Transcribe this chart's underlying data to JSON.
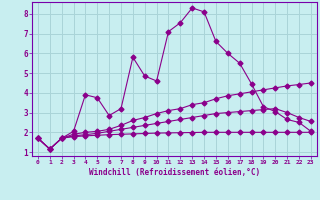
{
  "xlabel": "Windchill (Refroidissement éolien,°C)",
  "bg_color": "#c8eef0",
  "grid_color": "#aad4d8",
  "line_color": "#8b008b",
  "border_color": "#7700aa",
  "marker": "D",
  "xlim": [
    -0.5,
    23.5
  ],
  "ylim": [
    0.8,
    8.6
  ],
  "xticks": [
    0,
    1,
    2,
    3,
    4,
    5,
    6,
    7,
    8,
    9,
    10,
    11,
    12,
    13,
    14,
    15,
    16,
    17,
    18,
    19,
    20,
    21,
    22,
    23
  ],
  "yticks": [
    1,
    2,
    3,
    4,
    5,
    6,
    7,
    8
  ],
  "curve1_x": [
    0,
    1,
    2,
    3,
    4,
    5,
    6,
    7,
    8,
    9,
    10,
    11,
    12,
    13,
    14,
    15,
    16,
    17,
    18,
    19,
    20,
    21,
    22,
    23
  ],
  "curve1_y": [
    1.7,
    1.15,
    1.7,
    2.05,
    3.9,
    3.75,
    2.85,
    3.2,
    5.8,
    4.85,
    4.6,
    7.1,
    7.55,
    8.3,
    8.1,
    6.6,
    6.0,
    5.5,
    4.45,
    3.3,
    3.05,
    2.65,
    2.5,
    2.05
  ],
  "curve2_x": [
    0,
    1,
    2,
    3,
    4,
    5,
    6,
    7,
    8,
    9,
    10,
    11,
    12,
    13,
    14,
    15,
    16,
    17,
    18,
    19,
    20,
    21,
    22,
    23
  ],
  "curve2_y": [
    1.7,
    1.15,
    1.7,
    1.9,
    2.0,
    2.05,
    2.15,
    2.35,
    2.6,
    2.75,
    2.95,
    3.1,
    3.2,
    3.4,
    3.5,
    3.7,
    3.85,
    3.95,
    4.05,
    4.15,
    4.25,
    4.35,
    4.42,
    4.5
  ],
  "curve3_x": [
    0,
    1,
    2,
    3,
    4,
    5,
    6,
    7,
    8,
    9,
    10,
    11,
    12,
    13,
    14,
    15,
    16,
    17,
    18,
    19,
    20,
    21,
    22,
    23
  ],
  "curve3_y": [
    1.7,
    1.15,
    1.7,
    1.82,
    1.88,
    1.95,
    2.05,
    2.15,
    2.25,
    2.35,
    2.45,
    2.55,
    2.65,
    2.75,
    2.85,
    2.95,
    3.0,
    3.05,
    3.1,
    3.15,
    3.2,
    3.0,
    2.75,
    2.55
  ],
  "curve4_x": [
    0,
    1,
    2,
    3,
    4,
    5,
    6,
    7,
    8,
    9,
    10,
    11,
    12,
    13,
    14,
    15,
    16,
    17,
    18,
    19,
    20,
    21,
    22,
    23
  ],
  "curve4_y": [
    1.7,
    1.15,
    1.7,
    1.78,
    1.82,
    1.85,
    1.88,
    1.9,
    1.92,
    1.94,
    1.96,
    1.97,
    1.98,
    1.99,
    2.0,
    2.0,
    2.0,
    2.0,
    2.0,
    2.0,
    2.0,
    2.0,
    2.0,
    2.0
  ]
}
